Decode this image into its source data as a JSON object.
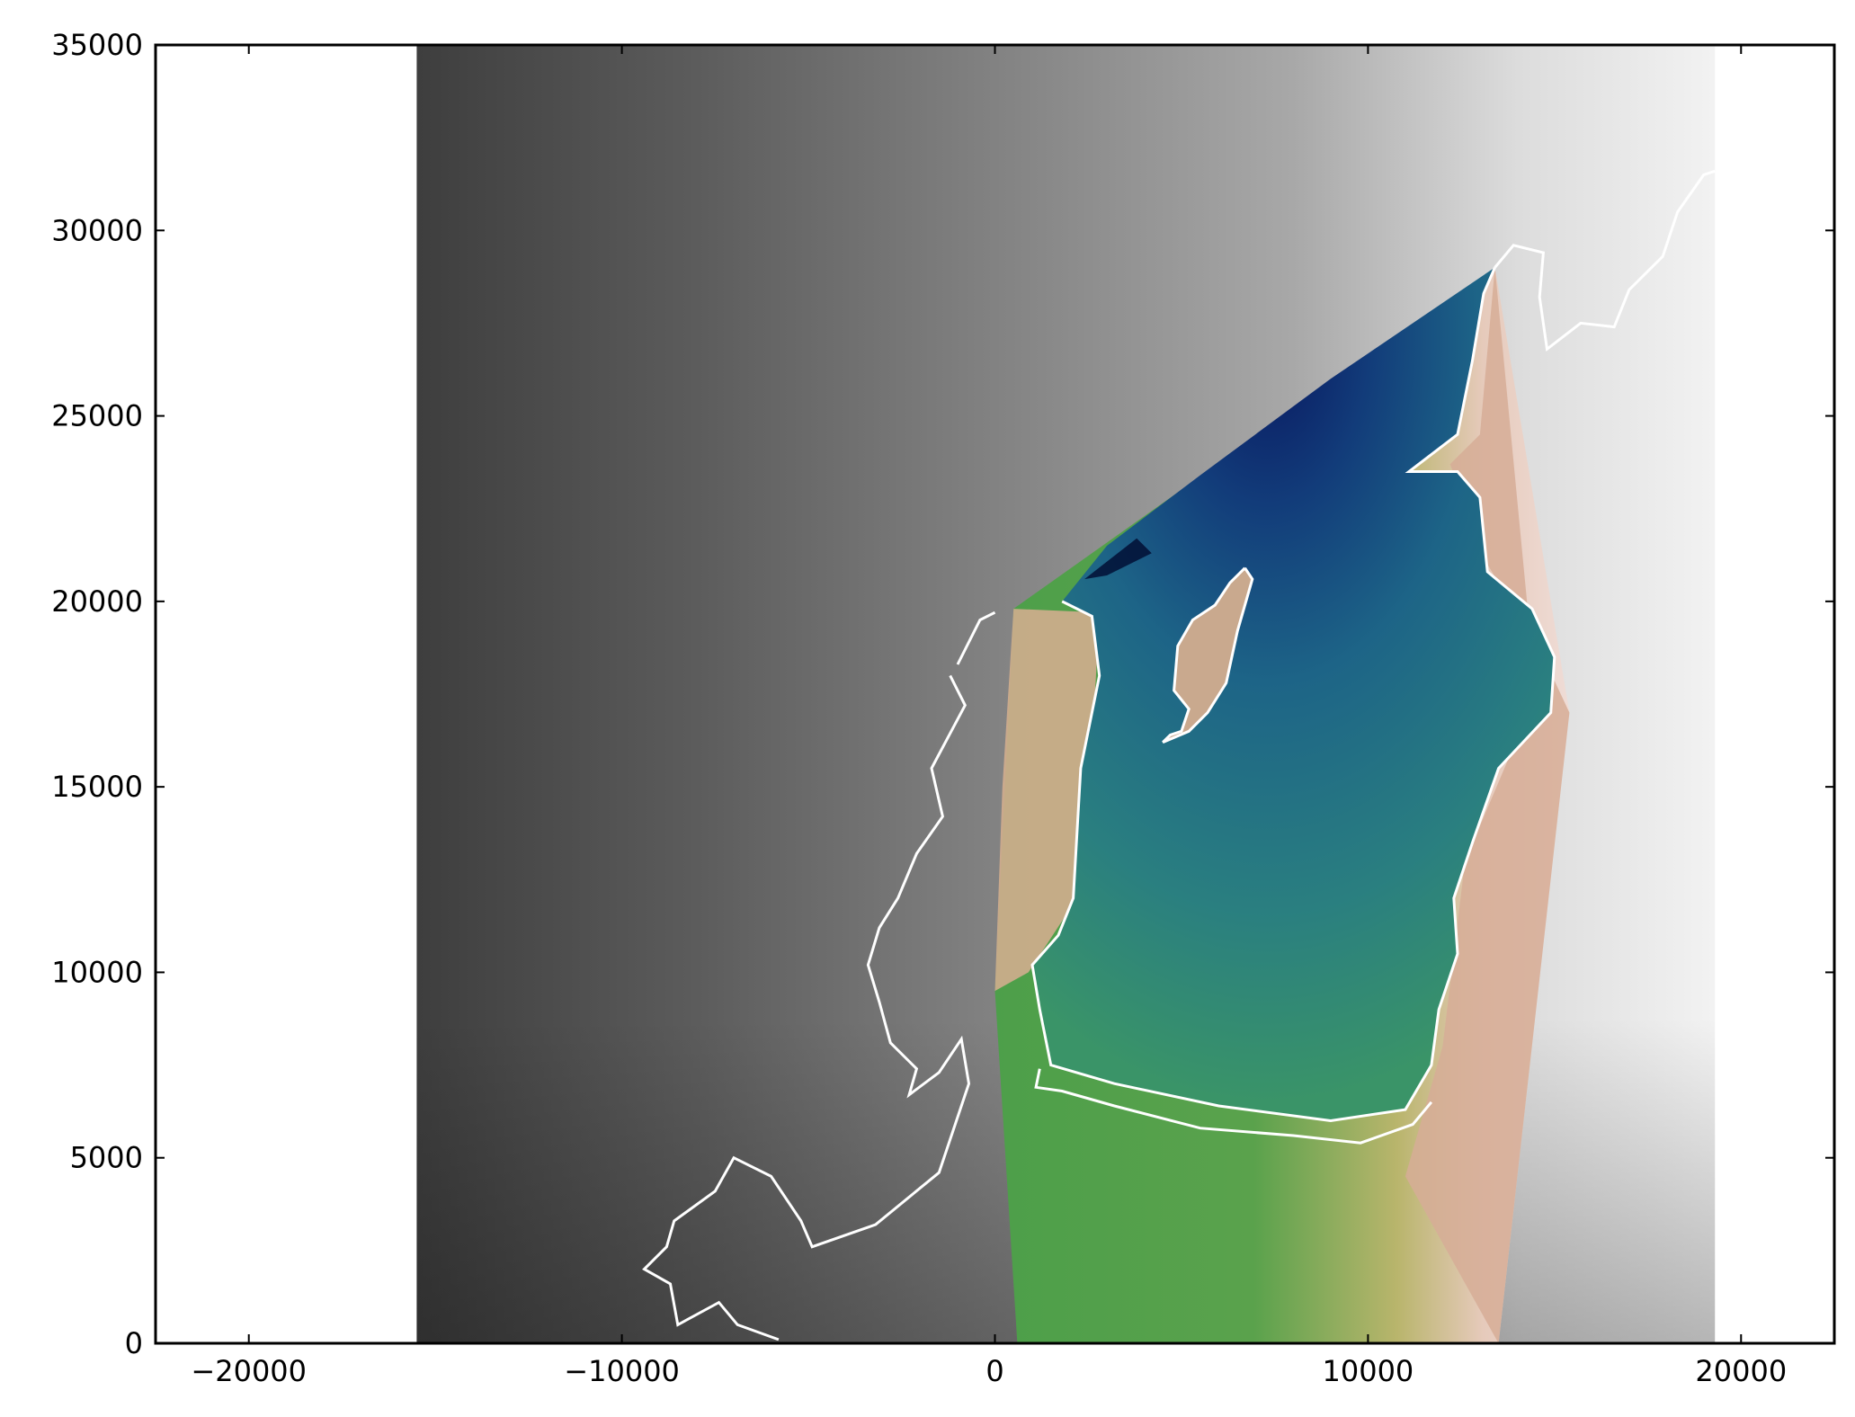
{
  "chart_data": {
    "type": "heatmap",
    "title": "",
    "xlabel": "",
    "ylabel": "",
    "xlim": [
      -22500,
      22500
    ],
    "ylim": [
      0,
      35000
    ],
    "grid": false,
    "legend": "none",
    "xticks": [
      {
        "value": -20000,
        "label": "−20000"
      },
      {
        "value": -10000,
        "label": "−10000"
      },
      {
        "value": 0,
        "label": "0"
      },
      {
        "value": 10000,
        "label": "10000"
      },
      {
        "value": 20000,
        "label": "20000"
      }
    ],
    "yticks": [
      {
        "value": 0,
        "label": "0"
      },
      {
        "value": 5000,
        "label": "5000"
      },
      {
        "value": 10000,
        "label": "10000"
      },
      {
        "value": 15000,
        "label": "15000"
      },
      {
        "value": 20000,
        "label": "20000"
      },
      {
        "value": 25000,
        "label": "25000"
      },
      {
        "value": 30000,
        "label": "30000"
      },
      {
        "value": 35000,
        "label": "35000"
      }
    ],
    "layers": [
      {
        "name": "grayscale-background-elevation",
        "colormap": "gray",
        "extent_x": [
          -15500,
          19300
        ],
        "extent_y": [
          0,
          35000
        ],
        "gradient_stops": [
          {
            "x": -15500,
            "color": "#3e3e3e"
          },
          {
            "x": -8000,
            "color": "#5c5c5c"
          },
          {
            "x": 0,
            "color": "#828282"
          },
          {
            "x": 8000,
            "color": "#a8a8a8"
          },
          {
            "x": 14000,
            "color": "#dcdcdc"
          },
          {
            "x": 19300,
            "color": "#f2f2f2"
          }
        ]
      },
      {
        "name": "colored-model-domain",
        "colormap": "gist_earth",
        "polygon": [
          [
            500,
            19800
          ],
          [
            13400,
            29000
          ],
          [
            15400,
            17000
          ],
          [
            13500,
            0
          ],
          [
            600,
            0
          ],
          [
            0,
            9500
          ]
        ]
      }
    ],
    "overlay": {
      "name": "shoreline",
      "color": "#ffffff"
    },
    "colors": {
      "deep_water": "#0a1a6e",
      "mid_water": "#1f6f8b",
      "shallow_water": "#3a9a6a",
      "lowland": "#4aa04a",
      "mid_land": "#c8b878",
      "high_land": "#d9b8a0",
      "peak": "#f0dede"
    }
  }
}
